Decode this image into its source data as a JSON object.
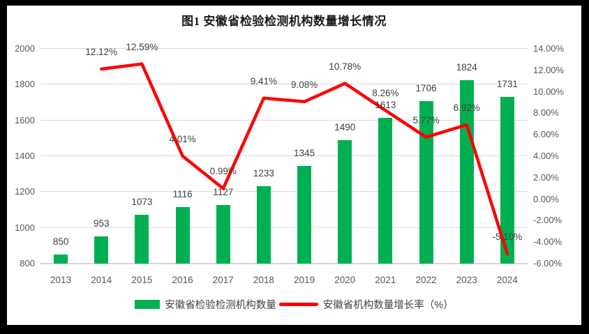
{
  "title": "图1 安徽省检验检测机构数量增长情况",
  "colors": {
    "bar": "#00B050",
    "line": "#FF0000",
    "grid": "#D9D9D9",
    "axis_text": "#595959",
    "label_text": "#404040",
    "frame": "#000000",
    "background": "#FFFFFF"
  },
  "chart_data": {
    "type": "bar+line",
    "title": "图1 安徽省检验检测机构数量增长情况",
    "categories": [
      "2013",
      "2014",
      "2015",
      "2016",
      "2017",
      "2018",
      "2019",
      "2020",
      "2021",
      "2022",
      "2023",
      "2024"
    ],
    "series": [
      {
        "name": "安徽省检验检测机构数量",
        "type": "bar",
        "axis": "left",
        "color": "#00B050",
        "values": [
          850,
          953,
          1073,
          1116,
          1127,
          1233,
          1345,
          1490,
          1613,
          1706,
          1824,
          1731
        ],
        "data_labels": [
          "850",
          "953",
          "1073",
          "1116",
          "1127",
          "1233",
          "1345",
          "1490",
          "1613",
          "1706",
          "1824",
          "1731"
        ]
      },
      {
        "name": "安徽省机构数量增长率（%）",
        "type": "line",
        "axis": "right",
        "color": "#FF0000",
        "values": [
          null,
          12.12,
          12.59,
          4.01,
          0.99,
          9.41,
          9.08,
          10.78,
          8.26,
          5.77,
          6.92,
          -5.1
        ],
        "data_labels": [
          null,
          "12.12%",
          "12.59%",
          "4.01%",
          "0.99%",
          "9.41%",
          "9.08%",
          "10.78%",
          "8.26%",
          "5.77%",
          "6.92%",
          "-5.10%"
        ]
      }
    ],
    "left_axis": {
      "min": 800,
      "max": 2000,
      "step": 200,
      "tick_labels": [
        "800",
        "1000",
        "1200",
        "1400",
        "1600",
        "1800",
        "2000"
      ]
    },
    "right_axis": {
      "min": -6,
      "max": 14,
      "step": 2,
      "tick_labels": [
        "-6.00%",
        "-4.00%",
        "-2.00%",
        "0.00%",
        "2.00%",
        "4.00%",
        "6.00%",
        "8.00%",
        "10.00%",
        "12.00%",
        "14.00%"
      ]
    },
    "grid": "horizontal",
    "legend_position": "bottom"
  }
}
